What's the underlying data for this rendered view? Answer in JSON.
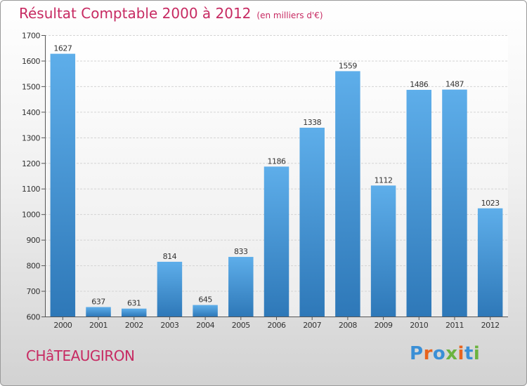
{
  "header": {
    "title": "Résultat Comptable 2000 à 2012",
    "unit_note": "(en milliers d'€)"
  },
  "location": {
    "name": "CHâTEAUGIRON"
  },
  "logo": {
    "text": "Proxiti",
    "letter_colors": [
      "#3a8fd6",
      "#e8641e",
      "#3a8fd6",
      "#6cb33f",
      "#e8641e",
      "#3a8fd6",
      "#6cb33f"
    ]
  },
  "colors": {
    "bar_top": "#5eaeea",
    "bar_bottom": "#2e78b8",
    "title": "#c72a62"
  },
  "chart_data": {
    "type": "bar",
    "title": "Résultat Comptable 2000 à 2012",
    "xlabel": "",
    "ylabel": "",
    "categories": [
      "2000",
      "2001",
      "2002",
      "2003",
      "2004",
      "2005",
      "2006",
      "2007",
      "2008",
      "2009",
      "2010",
      "2011",
      "2012"
    ],
    "values": [
      1627,
      637,
      631,
      814,
      645,
      833,
      1186,
      1338,
      1559,
      1112,
      1486,
      1487,
      1023
    ],
    "ylim": [
      600,
      1700
    ],
    "yticks": [
      600,
      700,
      800,
      900,
      1000,
      1100,
      1200,
      1300,
      1400,
      1500,
      1600,
      1700
    ],
    "grid": true,
    "data_labels": true
  }
}
